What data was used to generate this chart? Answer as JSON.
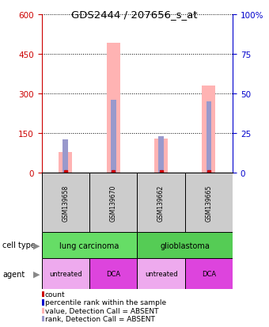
{
  "title": "GDS2444 / 207656_s_at",
  "samples": [
    "GSM139658",
    "GSM139670",
    "GSM139662",
    "GSM139665"
  ],
  "value_bars": [
    80,
    490,
    130,
    330
  ],
  "rank_values": [
    21,
    46,
    23,
    45
  ],
  "ylim_left": [
    0,
    600
  ],
  "ylim_right": [
    0,
    100
  ],
  "yticks_left": [
    0,
    150,
    300,
    450,
    600
  ],
  "yticks_right": [
    0,
    25,
    50,
    75,
    100
  ],
  "left_axis_color": "#cc0000",
  "right_axis_color": "#0000cc",
  "bar_pink": "#ffb3b3",
  "bar_blue": "#9999cc",
  "bar_red": "#cc0000",
  "sample_box_color": "#cccccc",
  "cell_types": [
    {
      "name": "lung carcinoma",
      "span": 2,
      "color": "#66dd66"
    },
    {
      "name": "glioblastoma",
      "span": 2,
      "color": "#55cc55"
    }
  ],
  "agents": [
    {
      "name": "untreated",
      "color": "#eeaaee"
    },
    {
      "name": "DCA",
      "color": "#dd44dd"
    },
    {
      "name": "untreated",
      "color": "#eeaaee"
    },
    {
      "name": "DCA",
      "color": "#dd44dd"
    }
  ],
  "legend_items": [
    {
      "color": "#cc0000",
      "label": "count"
    },
    {
      "color": "#0000cc",
      "label": "percentile rank within the sample"
    },
    {
      "color": "#ffb3b3",
      "label": "value, Detection Call = ABSENT"
    },
    {
      "color": "#9999cc",
      "label": "rank, Detection Call = ABSENT"
    }
  ]
}
